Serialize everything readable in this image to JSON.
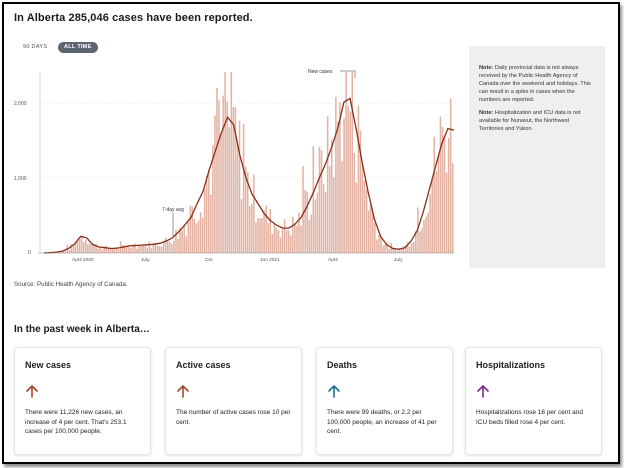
{
  "header": {
    "title": "In Alberta 285,046 cases have been reported."
  },
  "range_buttons": [
    {
      "label": "90 DAYS"
    },
    {
      "label": "ALL TIME"
    }
  ],
  "chart_data": {
    "type": "bar",
    "title": "",
    "xlabel": "",
    "ylabel": "",
    "ylim": [
      0,
      2400
    ],
    "y_ticks": [
      "0",
      "1,000",
      "2,000"
    ],
    "x_ticks": [
      "April 2020",
      "July",
      "Oct",
      "Jan 2021",
      "April",
      "July"
    ],
    "annotations": [
      "New cases",
      "7-day avg"
    ],
    "series": [
      {
        "name": "New cases",
        "color": "#e3b2a3"
      },
      {
        "name": "7-day avg",
        "color": "#8b2e16"
      }
    ],
    "seven_day_avg": [
      0,
      5,
      12,
      25,
      60,
      120,
      220,
      200,
      110,
      80,
      70,
      60,
      65,
      80,
      95,
      100,
      105,
      110,
      115,
      130,
      160,
      200,
      280,
      370,
      470,
      650,
      820,
      1100,
      1350,
      1600,
      1800,
      1700,
      1300,
      1000,
      780,
      650,
      520,
      430,
      370,
      330,
      330,
      380,
      470,
      620,
      800,
      1000,
      1180,
      1400,
      1650,
      2000,
      2050,
      1650,
      1200,
      800,
      450,
      220,
      110,
      60,
      50,
      70,
      160,
      300,
      550,
      850,
      1150,
      1450,
      1650,
      1630
    ]
  },
  "note": {
    "p1_label": "Note:",
    "p1_text": " Daily provincial data is not always received by the Public Health Agency of Canada over the weekend and holidays. This can result in a spike in cases when the numbers are reported.",
    "p2_label": "Note:",
    "p2_text": " Hospitalization and ICU data is not available for Nunavut, the Northwest Territories and Yukon."
  },
  "source": "Source: Public Health Agency of Canada.",
  "week": {
    "title": "In the past week in Alberta…",
    "cards": [
      {
        "title": "New cases",
        "text": "There were 11,226 new cases, an increase of 4 per cent. That's 253.1 cases per 100,000 people.",
        "arrow": "arrow-up-icon",
        "color": "#a5492a"
      },
      {
        "title": "Active cases",
        "text": "The number of active cases rose 10 per cent.",
        "arrow": "arrow-up-icon",
        "color": "#a5492a"
      },
      {
        "title": "Deaths",
        "text": "There were 99 deaths, or 2.2 per 100,000 people, an increase of 41 per cent.",
        "arrow": "arrow-up-icon",
        "color": "#1f6f8b"
      },
      {
        "title": "Hospitalizations",
        "text": "Hospitalizations rose 16 per cent and ICU beds filled rose 4 per cent.",
        "arrow": "arrow-up-icon",
        "color": "#7a2a86"
      }
    ]
  }
}
